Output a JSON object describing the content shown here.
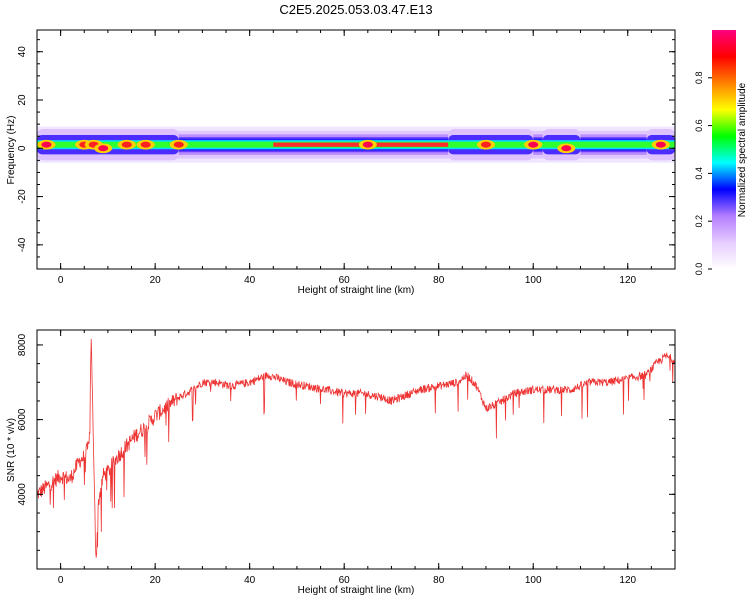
{
  "title": "C2E5.2025.053.03.47.E13",
  "colors": {
    "snr_line": "#ee3333",
    "axis": "#000000"
  },
  "colorbar": {
    "label": "Normalized spectral amplitude",
    "ticks": [
      "0.0",
      "0.2",
      "0.4",
      "0.6",
      "0.8"
    ]
  },
  "chart_data": [
    {
      "type": "heatmap",
      "title": "",
      "xlabel": "Height of straight line (km)",
      "ylabel": "Frequency (Hz)",
      "xlim": [
        -5,
        130
      ],
      "ylim": [
        -50,
        49
      ],
      "x_ticks": [
        "0",
        "20",
        "40",
        "60",
        "80",
        "100",
        "120"
      ],
      "y_ticks": [
        "40",
        "20",
        "0",
        "-20",
        "-40"
      ],
      "x_tick_values": [
        0,
        20,
        40,
        60,
        80,
        100,
        120
      ],
      "y_tick_values": [
        40,
        20,
        0,
        -20,
        -40
      ],
      "band": {
        "center_hz": 1.5,
        "halfwidth_hz": 2.5,
        "wide_segments_km": [
          [
            -5,
            25
          ],
          [
            82,
            100
          ],
          [
            102,
            110
          ],
          [
            124,
            130
          ]
        ],
        "hotspots": [
          {
            "x": -3,
            "y": 1.5,
            "amp": 0.95
          },
          {
            "x": 5,
            "y": 1.5,
            "amp": 0.9
          },
          {
            "x": 7,
            "y": 1.5,
            "amp": 0.9
          },
          {
            "x": 9,
            "y": 0,
            "amp": 0.95
          },
          {
            "x": 14,
            "y": 1.5,
            "amp": 0.9
          },
          {
            "x": 18,
            "y": 1.5,
            "amp": 0.9
          },
          {
            "x": 25,
            "y": 1.5,
            "amp": 0.9
          },
          {
            "x": 65,
            "y": 1.5,
            "amp": 0.95
          },
          {
            "x": 90,
            "y": 1.5,
            "amp": 0.9
          },
          {
            "x": 100,
            "y": 1.5,
            "amp": 0.95
          },
          {
            "x": 107,
            "y": 0,
            "amp": 0.95
          },
          {
            "x": 127,
            "y": 1.5,
            "amp": 0.95
          }
        ]
      },
      "colorscale": [
        "#ffffff",
        "#e6ccff",
        "#b37dff",
        "#0000ff",
        "#00ffff",
        "#00ff00",
        "#ffff00",
        "#ff8000",
        "#ff0000",
        "#ff0080"
      ]
    },
    {
      "type": "line",
      "title": "",
      "xlabel": "Height of straight line (km)",
      "ylabel": "SNR (10 * v/v)",
      "xlim": [
        -5,
        130
      ],
      "ylim": [
        2000,
        8400
      ],
      "x_ticks": [
        "0",
        "20",
        "40",
        "60",
        "80",
        "100",
        "120"
      ],
      "y_ticks": [
        "8000",
        "6000",
        "4000"
      ],
      "x_tick_values": [
        0,
        20,
        40,
        60,
        80,
        100,
        120
      ],
      "y_tick_values": [
        8000,
        6000,
        4000
      ],
      "series": [
        {
          "x": [
            -5,
            -2,
            0,
            2,
            4,
            5,
            6,
            6.5,
            7,
            7.5,
            8,
            9,
            10,
            12,
            14,
            16,
            18,
            20,
            22,
            25,
            28,
            30,
            33,
            36,
            40,
            44,
            48,
            52,
            56,
            60,
            64,
            68,
            70,
            72,
            76,
            80,
            84,
            86,
            88,
            90,
            92,
            96,
            100,
            104,
            108,
            112,
            116,
            120,
            124,
            126,
            128,
            130
          ],
          "y": [
            4000,
            4300,
            4500,
            4400,
            4900,
            5000,
            5300,
            8300,
            4800,
            2200,
            3800,
            4500,
            4600,
            5000,
            5300,
            5600,
            5800,
            6100,
            6300,
            6600,
            6800,
            7000,
            7000,
            6900,
            7000,
            7200,
            7000,
            6900,
            6800,
            6700,
            6700,
            6600,
            6500,
            6600,
            6800,
            6900,
            7000,
            7200,
            6900,
            6300,
            6400,
            6700,
            6800,
            6800,
            6800,
            7000,
            7000,
            7100,
            7200,
            7500,
            7700,
            7600
          ]
        }
      ]
    }
  ]
}
